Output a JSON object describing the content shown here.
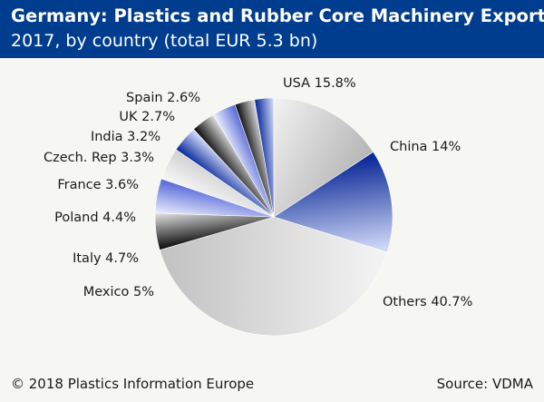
{
  "header": {
    "title": "Germany: Plastics and Rubber Core Machinery Exports",
    "subtitle": "2017, by country (total EUR 5.3 bn)"
  },
  "footer": {
    "copyright": "© 2018 Plastics Information Europe",
    "source": "Source: VDMA"
  },
  "colors": {
    "header_bg": "#003d8f",
    "background": "#f6f6f2"
  },
  "chart_data": {
    "type": "pie",
    "title": "Germany: Plastics and Rubber Core Machinery Exports",
    "subtitle": "2017, by country (total EUR 5.3 bn)",
    "unit": "%",
    "slices": [
      {
        "name": "USA",
        "value": 15.8,
        "label": "USA 15.8%",
        "style": "grey"
      },
      {
        "name": "China",
        "value": 14,
        "label": "China 14%",
        "style": "blue"
      },
      {
        "name": "Others",
        "value": 40.7,
        "label": "Others 40.7%",
        "style": "grey"
      },
      {
        "name": "Mexico",
        "value": 5,
        "label": "Mexico 5%",
        "style": "dark"
      },
      {
        "name": "Italy",
        "value": 4.7,
        "label": "Italy 4.7%",
        "style": "lightblue"
      },
      {
        "name": "Poland",
        "value": 4.4,
        "label": "Poland 4.4%",
        "style": "lightgrey"
      },
      {
        "name": "France",
        "value": 3.6,
        "label": "France 3.6%",
        "style": "blue"
      },
      {
        "name": "Czech. Rep",
        "value": 3.3,
        "label": "Czech. Rep 3.3%",
        "style": "dark"
      },
      {
        "name": "India",
        "value": 3.2,
        "label": "India 3.2%",
        "style": "lightblue"
      },
      {
        "name": "UK",
        "value": 2.7,
        "label": "UK 2.7%",
        "style": "dark"
      },
      {
        "name": "Spain",
        "value": 2.6,
        "label": "Spain 2.6%",
        "style": "blue"
      }
    ]
  }
}
